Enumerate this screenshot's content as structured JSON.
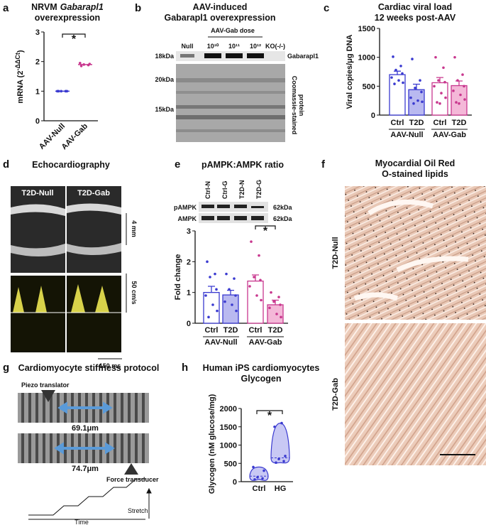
{
  "panel_labels": [
    "a",
    "b",
    "c",
    "d",
    "e",
    "f",
    "g",
    "h"
  ],
  "chart_data": [
    {
      "type": "dot",
      "title": "NRVM",
      "title_italic": "Gabarapl1",
      "title_line2": "overexpression",
      "ylabel": "mRNA (2",
      "ylabel_sup": "-ΔΔCt",
      "ylabel_end": ")",
      "categories": [
        "AAV-Null",
        "AAV-Gab"
      ],
      "values": [
        1.0,
        1.9
      ],
      "colors": [
        "#3a3ad0",
        "#c8378e"
      ],
      "points": [
        [
          1.0,
          1.0,
          1.0,
          1.0,
          1.0
        ],
        [
          1.85,
          1.88,
          1.9,
          1.92,
          1.95
        ]
      ],
      "ylim": [
        0,
        3
      ],
      "yticks": [
        0,
        1,
        2,
        3
      ],
      "significance": "*"
    },
    {
      "type": "bar",
      "title": "Cardiac viral load",
      "title_line2": "12 weeks post-AAV",
      "ylabel": "Viral copies/μg DNA",
      "categories": [
        "Ctrl",
        "T2D",
        "Ctrl",
        "T2D"
      ],
      "groups": [
        "AAV-Null",
        "AAV-Gab"
      ],
      "values": [
        700,
        440,
        560,
        510
      ],
      "errors": [
        60,
        95,
        90,
        80
      ],
      "colors": [
        "#3a3ad0",
        "#3a3ad0",
        "#c8378e",
        "#c8378e"
      ],
      "fills": [
        "#ffffff",
        "#b9b9f0",
        "#ffffff",
        "#f4b8d8"
      ],
      "points": [
        [
          1010,
          850,
          780,
          720,
          650,
          600,
          560,
          540
        ],
        [
          970,
          600,
          470,
          400,
          300,
          250,
          230,
          200
        ],
        [
          1000,
          820,
          600,
          570,
          500,
          380,
          300,
          220,
          200
        ],
        [
          1000,
          700,
          600,
          500,
          420,
          350,
          270,
          220,
          200
        ]
      ],
      "ylim": [
        0,
        1500
      ],
      "yticks": [
        0,
        500,
        1000,
        1500
      ]
    },
    {
      "type": "bar",
      "title": "pAMPK:AMPK ratio",
      "ylabel": "Fold change",
      "categories": [
        "Ctrl",
        "T2D",
        "Ctrl",
        "T2D"
      ],
      "groups": [
        "AAV-Null",
        "AAV-Gab"
      ],
      "values": [
        1.0,
        0.92,
        1.37,
        0.6
      ],
      "errors": [
        0.2,
        0.15,
        0.2,
        0.15
      ],
      "colors": [
        "#3a3ad0",
        "#3a3ad0",
        "#c8378e",
        "#c8378e"
      ],
      "fills": [
        "#ffffff",
        "#b9b9f0",
        "#ffffff",
        "#f4b8d8"
      ],
      "points": [
        [
          2.0,
          1.6,
          1.5,
          1.1,
          0.9,
          0.6,
          0.4,
          0.2
        ],
        [
          1.6,
          1.45,
          1.1,
          0.9,
          0.7,
          0.6,
          0.4
        ],
        [
          2.65,
          2.2,
          1.5,
          1.4,
          1.2,
          0.9,
          0.75
        ],
        [
          1.0,
          0.85,
          0.7,
          0.6,
          0.5,
          0.3,
          0.2
        ]
      ],
      "ylim": [
        0,
        3
      ],
      "yticks": [
        0,
        1,
        2,
        3
      ],
      "significance": "*",
      "blot": {
        "lanes": [
          "Ctrl-N",
          "Ctrl-G",
          "T2D-N",
          "T2D-G"
        ],
        "rows": [
          "pAMPK",
          "AMPK"
        ],
        "sizes": [
          "62kDa",
          "62kDa"
        ]
      }
    },
    {
      "type": "violin",
      "title": "Human iPS cardiomyocytes",
      "title_line2": "Glycogen",
      "ylabel": "Glycogen (nM glucose/mg)",
      "categories": [
        "Ctrl",
        "HG"
      ],
      "values": [
        150,
        650
      ],
      "colors": [
        "#3a3ad0",
        "#3a3ad0"
      ],
      "fills": [
        "#c8c8f4",
        "#c8c8f4"
      ],
      "points": [
        [
          60,
          90,
          120,
          300,
          400
        ],
        [
          520,
          560,
          620,
          700,
          1500,
          1600
        ]
      ],
      "ylim": [
        0,
        2000
      ],
      "yticks": [
        0,
        500,
        1000,
        1500,
        2000
      ],
      "significance": "*"
    }
  ],
  "blot_b": {
    "title": "AAV-induced",
    "title_line2": "Gabarapl1 overexpression",
    "dose": "AAV-Gab dose",
    "lanes": [
      "Null",
      "10¹⁰",
      "10¹¹",
      "10¹²",
      "KO(-/-)"
    ],
    "sizes": [
      "18kDa",
      "20kDa",
      "15kDa"
    ],
    "band": "Gabarapl1",
    "stain": "Coomassie-stained",
    "stain_line2": "protein"
  },
  "echo_d": {
    "title": "Echocardiography",
    "groups": [
      "T2D-Null",
      "T2D-Gab"
    ],
    "scale_mm": "4 mm",
    "scale_speed": "50 cm/s",
    "scale_time": "150 ms"
  },
  "histology_f": {
    "title": "Myocardial Oil Red",
    "title_line2": "O-stained lipids",
    "groups": [
      "T2D-Null",
      "T2D-Gab"
    ]
  },
  "stiffness_g": {
    "title": "Cardiomyocyte stiffness protocol",
    "piezo": "Piezo translator",
    "length1": "69.1μm",
    "length2": "74.7μm",
    "force": "Force transducer",
    "stretch": "Stretch",
    "time": "Time"
  }
}
